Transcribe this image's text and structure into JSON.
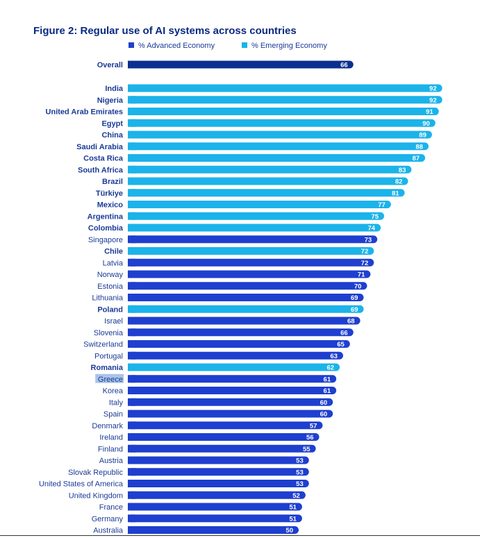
{
  "title": "Figure 2: Regular use of AI systems across countries",
  "legend": {
    "advanced_label": "% Advanced Economy",
    "emerging_label": "% Emerging Economy"
  },
  "colors": {
    "advanced": "#1e3fcf",
    "emerging": "#1bb3ea",
    "overall": "#0b2f8f",
    "label_text": "#1a3a96",
    "bar_value_text": "#ffffff"
  },
  "chart_data": {
    "type": "bar",
    "orientation": "horizontal",
    "title": "Figure 2: Regular use of AI systems across countries",
    "xlabel": "",
    "ylabel": "",
    "xlim": [
      0,
      100
    ],
    "grid": false,
    "legend_position": "top",
    "series": [
      {
        "name": "% Advanced Economy",
        "color": "#1e3fcf"
      },
      {
        "name": "% Emerging Economy",
        "color": "#1bb3ea"
      }
    ],
    "overall": {
      "label": "Overall",
      "value": 66
    },
    "categories": [
      "India",
      "Nigeria",
      "United Arab Emirates",
      "Egypt",
      "China",
      "Saudi Arabia",
      "Costa Rica",
      "South Africa",
      "Brazil",
      "Türkiye",
      "Mexico",
      "Argentina",
      "Colombia",
      "Singapore",
      "Chile",
      "Latvia",
      "Norway",
      "Estonia",
      "Lithuania",
      "Poland",
      "Israel",
      "Slovenia",
      "Switzerland",
      "Portugal",
      "Romania",
      "Greece",
      "Korea",
      "Italy",
      "Spain",
      "Denmark",
      "Ireland",
      "Finland",
      "Austria",
      "Slovak Republic",
      "United States of America",
      "United Kingdom",
      "France",
      "Germany",
      "Australia"
    ],
    "values": [
      92,
      92,
      91,
      90,
      89,
      88,
      87,
      83,
      82,
      81,
      77,
      75,
      74,
      73,
      72,
      72,
      71,
      70,
      69,
      69,
      68,
      66,
      65,
      63,
      62,
      61,
      61,
      60,
      60,
      57,
      56,
      55,
      53,
      53,
      53,
      52,
      51,
      51,
      50
    ],
    "economy": [
      "emerging",
      "emerging",
      "emerging",
      "emerging",
      "emerging",
      "emerging",
      "emerging",
      "emerging",
      "emerging",
      "emerging",
      "emerging",
      "emerging",
      "emerging",
      "advanced",
      "emerging",
      "advanced",
      "advanced",
      "advanced",
      "advanced",
      "emerging",
      "advanced",
      "advanced",
      "advanced",
      "advanced",
      "emerging",
      "advanced",
      "advanced",
      "advanced",
      "advanced",
      "advanced",
      "advanced",
      "advanced",
      "advanced",
      "advanced",
      "advanced",
      "advanced",
      "advanced",
      "advanced",
      "advanced"
    ],
    "highlighted": "Greece"
  }
}
